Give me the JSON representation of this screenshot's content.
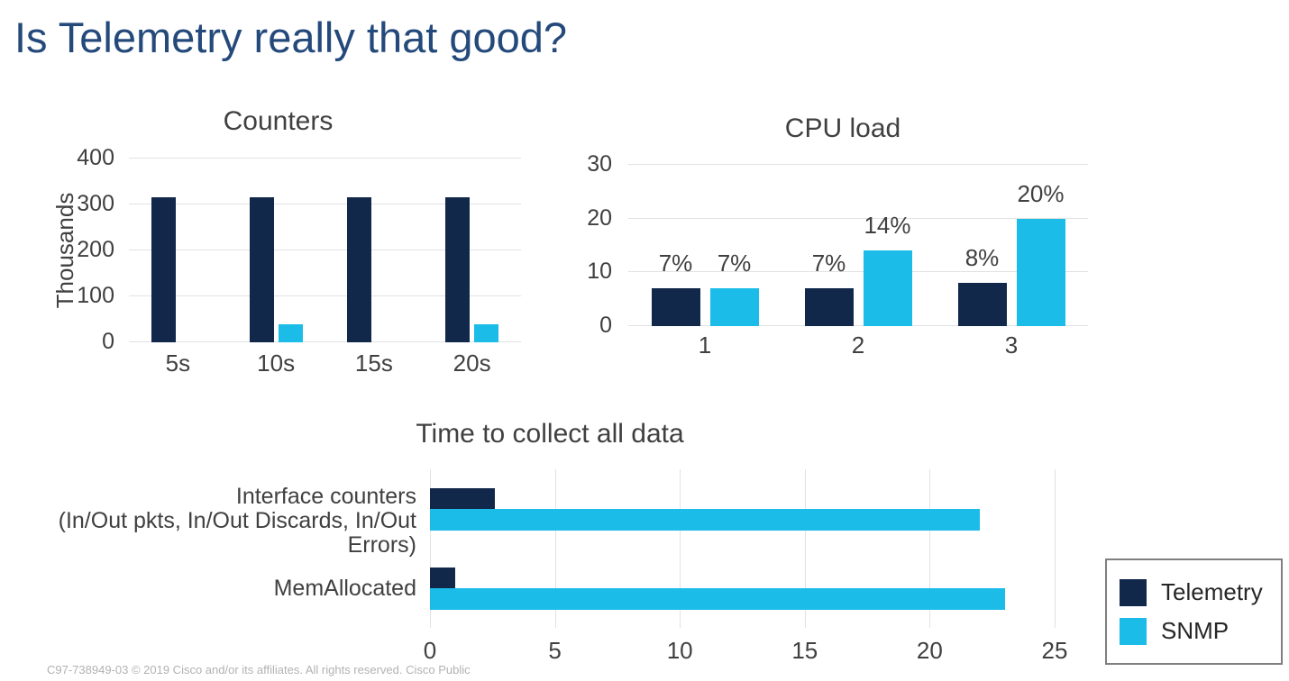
{
  "slide": {
    "title": "Is Telemetry really that good?",
    "footer": "C97-738949-03 © 2019  Cisco and/or its affiliates. All rights reserved. Cisco Public"
  },
  "colors": {
    "telemetry": "#12284B",
    "snmp": "#1BBCE8",
    "title_text": "#24497B",
    "chart_text": "#404040",
    "gridline": "#E2E2E2",
    "legend_border": "#7F7F7F",
    "legend_text": "#262626",
    "footer_text": "#B2B2B2"
  },
  "legend": {
    "items": [
      {
        "key": "telemetry",
        "label": "Telemetry",
        "color": "#12284B"
      },
      {
        "key": "snmp",
        "label": "SNMP",
        "color": "#1BBCE8"
      }
    ]
  },
  "chart_data": [
    {
      "id": "counters",
      "type": "bar",
      "title": "Counters",
      "xlabel": "",
      "ylabel": "Thousands",
      "categories": [
        "5s",
        "10s",
        "15s",
        "20s"
      ],
      "series": [
        {
          "name": "Telemetry",
          "values": [
            316,
            316,
            316,
            316
          ]
        },
        {
          "name": "SNMP",
          "values": [
            0,
            40,
            0,
            40
          ]
        }
      ],
      "ylim": [
        0,
        400
      ],
      "yticks": [
        0,
        100,
        200,
        300,
        400
      ],
      "grid": true,
      "legend_position": "none"
    },
    {
      "id": "cpu-load",
      "type": "bar",
      "title": "CPU load",
      "xlabel": "",
      "ylabel": "",
      "categories": [
        "1",
        "2",
        "3"
      ],
      "series": [
        {
          "name": "Telemetry",
          "values": [
            7,
            7,
            8
          ],
          "labels": [
            "7%",
            "7%",
            "8%"
          ]
        },
        {
          "name": "SNMP",
          "values": [
            7,
            14,
            20
          ],
          "labels": [
            "7%",
            "14%",
            "20%"
          ]
        }
      ],
      "ylim": [
        0,
        30
      ],
      "yticks": [
        0,
        10,
        20,
        30
      ],
      "grid": true,
      "legend_position": "none"
    },
    {
      "id": "time-to-collect",
      "type": "bar-horizontal",
      "title": "Time to collect all data",
      "xlabel": "",
      "ylabel": "",
      "categories": [
        [
          "Interface counters",
          "(In/Out pkts, In/Out Discards, In/Out Errors)"
        ],
        [
          "MemAllocated"
        ]
      ],
      "series": [
        {
          "name": "Telemetry",
          "values": [
            2.6,
            1
          ]
        },
        {
          "name": "SNMP",
          "values": [
            22,
            23
          ]
        }
      ],
      "xlim": [
        0,
        25
      ],
      "xticks": [
        0,
        5,
        10,
        15,
        20,
        25
      ],
      "grid": true,
      "legend_position": "bottom-right"
    }
  ]
}
